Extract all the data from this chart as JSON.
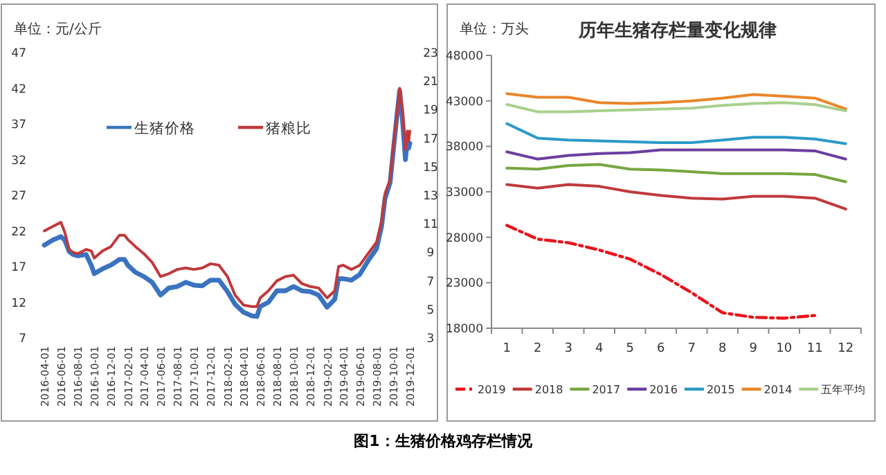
{
  "chart_data": [
    {
      "type": "line",
      "ylabel": "单位：元/公斤",
      "legend": "top",
      "annotations": [
        "图1：生猪价格鸡存栏情况"
      ],
      "x": [
        "2016-04-01",
        "2016-05-01",
        "2016-06-01",
        "2016-06-15",
        "2016-07-01",
        "2016-07-15",
        "2016-08-01",
        "2016-09-01",
        "2016-09-20",
        "2016-10-01",
        "2016-11-01",
        "2016-12-01",
        "2017-01-01",
        "2017-01-20",
        "2017-02-01",
        "2017-03-01",
        "2017-04-01",
        "2017-05-01",
        "2017-06-01",
        "2017-07-01",
        "2017-08-01",
        "2017-09-01",
        "2017-10-01",
        "2017-11-01",
        "2017-12-01",
        "2018-01-01",
        "2018-02-01",
        "2018-03-01",
        "2018-04-01",
        "2018-05-01",
        "2018-05-20",
        "2018-06-01",
        "2018-07-01",
        "2018-08-01",
        "2018-09-01",
        "2018-10-01",
        "2018-11-01",
        "2018-12-01",
        "2019-01-01",
        "2019-02-01",
        "2019-03-01",
        "2019-03-15",
        "2019-04-01",
        "2019-05-01",
        "2019-06-01",
        "2019-07-01",
        "2019-08-01",
        "2019-08-20",
        "2019-09-01",
        "2019-09-20",
        "2019-10-01",
        "2019-10-15",
        "2019-10-25",
        "2019-11-05",
        "2019-11-15",
        "2019-11-22",
        "2019-11-27",
        "2019-12-01"
      ],
      "series": [
        {
          "name": "生猪价格",
          "color": "#3a73c0",
          "values": [
            20.0,
            20.7,
            21.2,
            20.7,
            19.1,
            18.7,
            18.5,
            18.7,
            17.2,
            16.0,
            16.7,
            17.2,
            18.0,
            18.0,
            17.2,
            16.2,
            15.6,
            14.8,
            13.0,
            14.0,
            14.2,
            14.8,
            14.4,
            14.3,
            15.1,
            15.1,
            13.5,
            11.7,
            10.6,
            10.1,
            10.0,
            11.4,
            12.0,
            13.6,
            13.6,
            14.2,
            13.6,
            13.5,
            13.0,
            11.3,
            12.4,
            15.3,
            15.3,
            15.1,
            15.9,
            17.8,
            19.5,
            22.7,
            26.5,
            28.8,
            33.0,
            38.2,
            41.7,
            37.2,
            32.0,
            34.6,
            33.6,
            34.3
          ]
        },
        {
          "name": "猪粮比",
          "color": "#c0393b",
          "axis": "y2",
          "values": [
            10.5,
            10.8,
            11.1,
            10.4,
            9.2,
            9.0,
            8.9,
            9.2,
            9.1,
            8.6,
            9.1,
            9.4,
            10.2,
            10.2,
            9.9,
            9.4,
            8.9,
            8.3,
            7.3,
            7.5,
            7.8,
            7.9,
            7.8,
            7.9,
            8.2,
            8.1,
            7.3,
            6.0,
            5.3,
            5.2,
            5.2,
            5.8,
            6.3,
            7.0,
            7.3,
            7.4,
            6.8,
            6.6,
            6.5,
            5.8,
            6.3,
            8.0,
            8.1,
            7.8,
            8.1,
            8.9,
            9.7,
            11.2,
            13.1,
            14.1,
            16.3,
            18.6,
            20.5,
            18.9,
            16.2,
            17.5,
            16.8,
            17.5
          ]
        }
      ],
      "xlim": [
        "2016-04-01",
        "2019-12-01"
      ],
      "xticks": [
        "2016-04-01",
        "2016-06-01",
        "2016-08-01",
        "2016-10-01",
        "2016-12-01",
        "2017-02-01",
        "2017-04-01",
        "2017-06-01",
        "2017-08-01",
        "2017-10-01",
        "2017-12-01",
        "2018-02-01",
        "2018-04-01",
        "2018-06-01",
        "2018-08-01",
        "2018-10-01",
        "2018-12-01",
        "2019-02-01",
        "2019-04-01",
        "2019-06-01",
        "2019-08-01",
        "2019-10-01",
        "2019-12-01"
      ],
      "ylim": [
        7,
        47
      ],
      "yticks": [
        7,
        12,
        17,
        22,
        27,
        32,
        37,
        42,
        47
      ],
      "y2lim": [
        3,
        23
      ],
      "y2ticks": [
        3,
        5,
        7,
        9,
        11,
        13,
        15,
        17,
        19,
        21,
        23
      ]
    },
    {
      "type": "line",
      "title": "历年生猪存栏量变化规律",
      "ylabel": "单位：万头",
      "legend": "bottom",
      "categories": [
        "1",
        "2",
        "3",
        "4",
        "5",
        "6",
        "7",
        "8",
        "9",
        "10",
        "11",
        "12"
      ],
      "series": [
        {
          "name": "2019",
          "color": "#e8141b",
          "line_style": "dashed",
          "values": [
            29300,
            27800,
            27400,
            26600,
            25600,
            23900,
            21900,
            19700,
            19200,
            19100,
            19400,
            null
          ]
        },
        {
          "name": "2018",
          "color": "#c0393b",
          "values": [
            33800,
            33400,
            33800,
            33600,
            33000,
            32600,
            32300,
            32200,
            32500,
            32500,
            32300,
            31100
          ]
        },
        {
          "name": "2017",
          "color": "#77a640",
          "values": [
            35600,
            35500,
            35900,
            36000,
            35500,
            35400,
            35200,
            35000,
            35000,
            35000,
            34900,
            34100
          ]
        },
        {
          "name": "2016",
          "color": "#6b3fa0",
          "values": [
            37400,
            36600,
            37000,
            37200,
            37300,
            37600,
            37600,
            37600,
            37600,
            37600,
            37500,
            36600
          ]
        },
        {
          "name": "2015",
          "color": "#2a9ac8",
          "values": [
            40500,
            38900,
            38700,
            38600,
            38500,
            38400,
            38400,
            38700,
            39000,
            39000,
            38800,
            38300
          ]
        },
        {
          "name": "2014",
          "color": "#e8862a",
          "values": [
            43800,
            43400,
            43400,
            42800,
            42700,
            42800,
            43000,
            43300,
            43700,
            43500,
            43300,
            42100
          ]
        },
        {
          "name": "五年平均",
          "color": "#a8d08d",
          "values": [
            42600,
            41800,
            41800,
            41900,
            42000,
            42100,
            42200,
            42500,
            42700,
            42800,
            42600,
            41900
          ]
        }
      ],
      "ylim": [
        18000,
        48000
      ],
      "yticks": [
        18000,
        23000,
        28000,
        33000,
        38000,
        43000,
        48000
      ]
    }
  ]
}
